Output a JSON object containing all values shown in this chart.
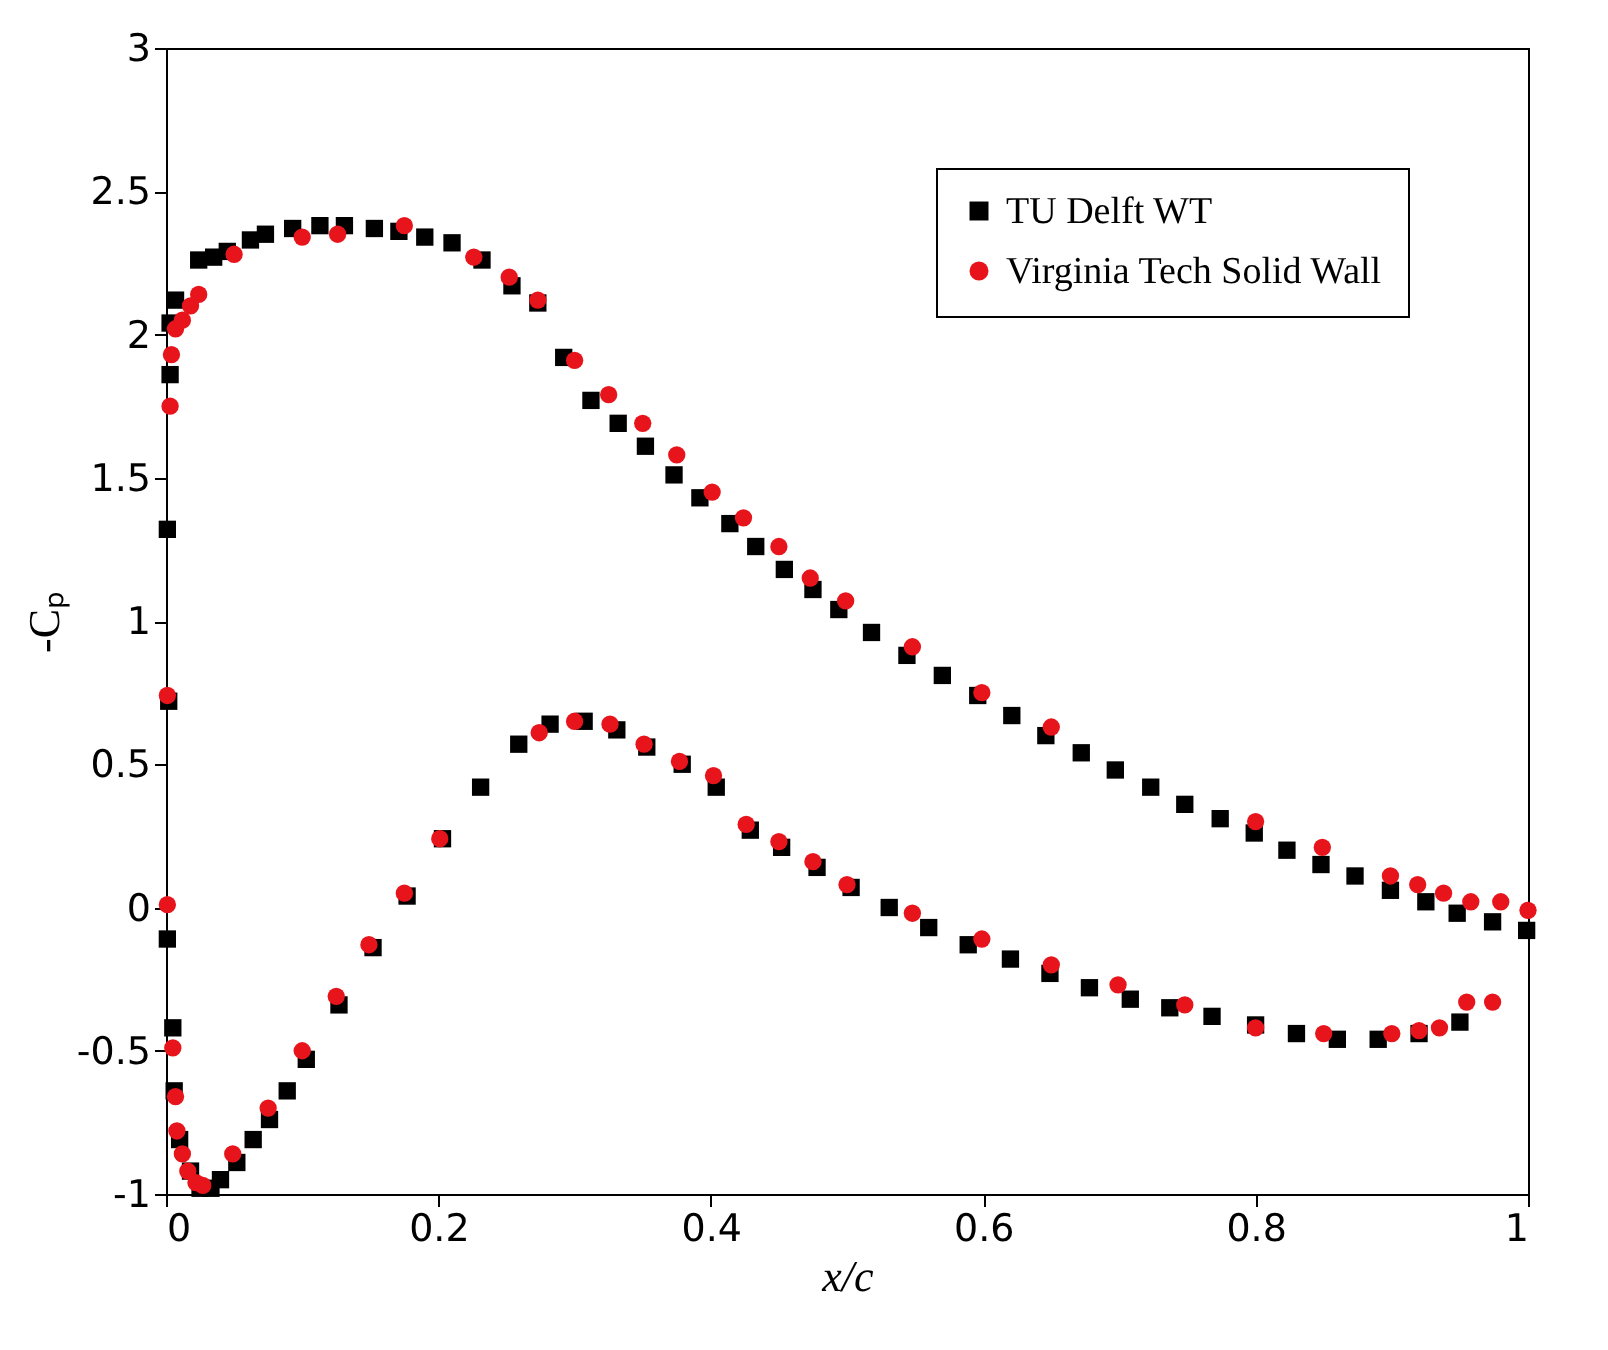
{
  "chart_data": {
    "type": "scatter",
    "xlabel": "x/c",
    "ylabel": "-Cₚ",
    "xlim": [
      0,
      1
    ],
    "ylim": [
      -1,
      3
    ],
    "xticks": [
      0,
      0.2,
      0.4,
      0.6,
      0.8,
      1
    ],
    "yticks": [
      -1,
      -0.5,
      0,
      0.5,
      1,
      1.5,
      2,
      2.5,
      3
    ],
    "grid": false,
    "legend": "top right",
    "series": [
      {
        "name": "TU Delft WT",
        "color": "#000000",
        "marker": "square",
        "x": [
          0.001,
          0.003,
          0.003,
          0.007,
          0.024,
          0.035,
          0.045,
          0.062,
          0.073,
          0.093,
          0.113,
          0.131,
          0.153,
          0.171,
          0.19,
          0.21,
          0.232,
          0.254,
          0.273,
          0.292,
          0.312,
          0.332,
          0.352,
          0.373,
          0.392,
          0.414,
          0.433,
          0.454,
          0.475,
          0.494,
          0.518,
          0.544,
          0.57,
          0.596,
          0.621,
          0.646,
          0.672,
          0.697,
          0.723,
          0.748,
          0.774,
          0.799,
          0.823,
          0.848,
          0.873,
          0.899,
          0.925,
          0.948,
          0.974,
          0.999,
          0.002,
          0.001,
          0.005,
          0.006,
          0.01,
          0.018,
          0.025,
          0.033,
          0.04,
          0.052,
          0.064,
          0.076,
          0.089,
          0.103,
          0.127,
          0.152,
          0.177,
          0.203,
          0.231,
          0.259,
          0.282,
          0.307,
          0.331,
          0.353,
          0.379,
          0.404,
          0.429,
          0.452,
          0.478,
          0.503,
          0.531,
          0.56,
          0.589,
          0.62,
          0.649,
          0.678,
          0.708,
          0.737,
          0.768,
          0.8,
          0.83,
          0.86,
          0.89,
          0.92,
          0.95
        ],
        "values": [
          1.32,
          1.86,
          2.04,
          2.12,
          2.26,
          2.27,
          2.29,
          2.33,
          2.35,
          2.37,
          2.38,
          2.38,
          2.37,
          2.36,
          2.34,
          2.32,
          2.26,
          2.17,
          2.11,
          1.92,
          1.77,
          1.69,
          1.61,
          1.51,
          1.43,
          1.34,
          1.26,
          1.18,
          1.11,
          1.04,
          0.96,
          0.88,
          0.81,
          0.74,
          0.67,
          0.6,
          0.54,
          0.48,
          0.42,
          0.36,
          0.31,
          0.26,
          0.2,
          0.15,
          0.11,
          0.06,
          0.02,
          -0.02,
          -0.05,
          -0.08,
          0.72,
          -0.11,
          -0.42,
          -0.64,
          -0.81,
          -0.92,
          -0.98,
          -0.98,
          -0.95,
          -0.89,
          -0.81,
          -0.74,
          -0.64,
          -0.53,
          -0.34,
          -0.14,
          0.04,
          0.24,
          0.42,
          0.57,
          0.64,
          0.65,
          0.62,
          0.56,
          0.5,
          0.42,
          0.27,
          0.21,
          0.14,
          0.07,
          0.0,
          -0.07,
          -0.13,
          -0.18,
          -0.23,
          -0.28,
          -0.32,
          -0.35,
          -0.38,
          -0.41,
          -0.44,
          -0.46,
          -0.46,
          -0.44,
          -0.4
        ]
      },
      {
        "name": "Virginia Tech Solid Wall",
        "color": "#e8141c",
        "marker": "circle",
        "x": [
          0.003,
          0.004,
          0.007,
          0.012,
          0.018,
          0.024,
          0.05,
          0.1,
          0.126,
          0.175,
          0.226,
          0.252,
          0.273,
          0.3,
          0.325,
          0.35,
          0.375,
          0.401,
          0.424,
          0.45,
          0.473,
          0.499,
          0.548,
          0.599,
          0.65,
          0.8,
          0.849,
          0.899,
          0.919,
          0.938,
          0.958,
          0.98,
          1.0,
          0.001,
          0.001,
          0.005,
          0.007,
          0.008,
          0.012,
          0.016,
          0.022,
          0.027,
          0.049,
          0.075,
          0.1,
          0.125,
          0.149,
          0.175,
          0.201,
          0.274,
          0.3,
          0.326,
          0.351,
          0.377,
          0.402,
          0.426,
          0.45,
          0.475,
          0.5,
          0.548,
          0.599,
          0.65,
          0.699,
          0.748,
          0.8,
          0.85,
          0.9,
          0.92,
          0.935,
          0.955,
          0.974
        ],
        "values": [
          1.75,
          1.93,
          2.02,
          2.05,
          2.1,
          2.14,
          2.28,
          2.34,
          2.35,
          2.38,
          2.27,
          2.2,
          2.12,
          1.91,
          1.79,
          1.69,
          1.58,
          1.45,
          1.36,
          1.26,
          1.15,
          1.07,
          0.91,
          0.75,
          0.63,
          0.3,
          0.21,
          0.11,
          0.08,
          0.05,
          0.02,
          0.02,
          -0.01,
          0.74,
          0.01,
          -0.49,
          -0.66,
          -0.78,
          -0.86,
          -0.92,
          -0.96,
          -0.97,
          -0.86,
          -0.7,
          -0.5,
          -0.31,
          -0.13,
          0.05,
          0.24,
          0.61,
          0.65,
          0.64,
          0.57,
          0.51,
          0.46,
          0.29,
          0.23,
          0.16,
          0.08,
          -0.02,
          -0.11,
          -0.2,
          -0.27,
          -0.34,
          -0.42,
          -0.44,
          -0.44,
          -0.43,
          -0.42,
          -0.33,
          -0.33
        ]
      }
    ]
  }
}
